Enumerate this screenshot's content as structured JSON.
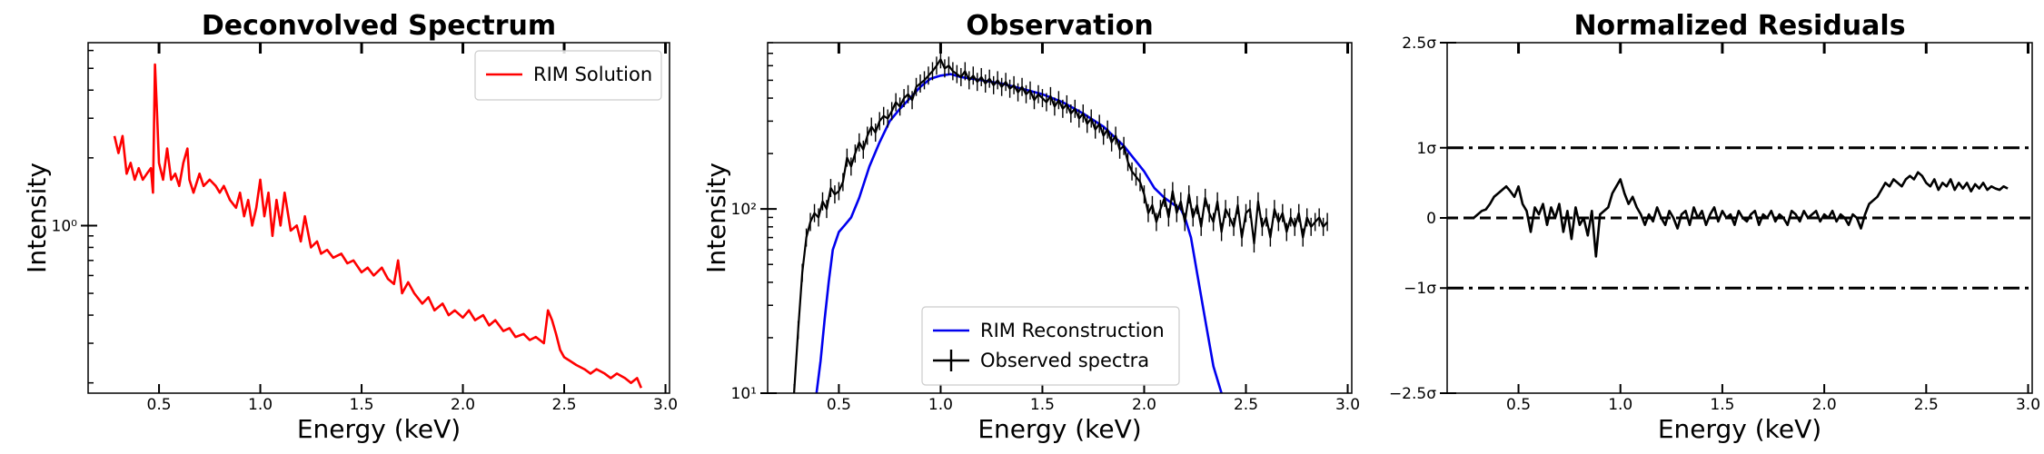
{
  "chart_data": [
    {
      "type": "line",
      "title": "Deconvolved Spectrum",
      "xlabel": "Energy (keV)",
      "ylabel": "Intensity",
      "xscale": "linear",
      "yscale": "log",
      "xlim": [
        0.15,
        3.02
      ],
      "ylim": [
        0.18,
        6.5
      ],
      "xticks": [
        {
          "v": 0.5,
          "label": "0.5"
        },
        {
          "v": 1.0,
          "label": "1.0"
        },
        {
          "v": 1.5,
          "label": "1.5"
        },
        {
          "v": 2.0,
          "label": "2.0"
        },
        {
          "v": 2.5,
          "label": "2.5"
        },
        {
          "v": 3.0,
          "label": "3.0"
        }
      ],
      "yticks": [
        {
          "v": 1.0,
          "label": "10⁰"
        }
      ],
      "legend": {
        "position": "upper-right",
        "entries": [
          {
            "label": "RIM Solution",
            "color": "#ff0000",
            "style": "line"
          }
        ]
      },
      "series": [
        {
          "name": "RIM Solution",
          "color": "#ff0000",
          "x": [
            0.28,
            0.3,
            0.32,
            0.34,
            0.36,
            0.38,
            0.4,
            0.42,
            0.44,
            0.46,
            0.47,
            0.48,
            0.49,
            0.5,
            0.52,
            0.54,
            0.56,
            0.58,
            0.6,
            0.62,
            0.64,
            0.65,
            0.67,
            0.7,
            0.72,
            0.75,
            0.78,
            0.8,
            0.82,
            0.85,
            0.88,
            0.9,
            0.92,
            0.94,
            0.96,
            0.98,
            1.0,
            1.02,
            1.04,
            1.06,
            1.08,
            1.1,
            1.12,
            1.15,
            1.18,
            1.2,
            1.22,
            1.25,
            1.28,
            1.3,
            1.33,
            1.36,
            1.4,
            1.43,
            1.46,
            1.5,
            1.53,
            1.56,
            1.6,
            1.63,
            1.66,
            1.68,
            1.7,
            1.73,
            1.76,
            1.8,
            1.83,
            1.86,
            1.9,
            1.93,
            1.96,
            2.0,
            2.03,
            2.06,
            2.1,
            2.13,
            2.16,
            2.2,
            2.23,
            2.26,
            2.3,
            2.33,
            2.36,
            2.4,
            2.42,
            2.44,
            2.46,
            2.48,
            2.5,
            2.53,
            2.56,
            2.6,
            2.63,
            2.66,
            2.7,
            2.73,
            2.76,
            2.8,
            2.83,
            2.86,
            2.88
          ],
          "y": [
            2.5,
            2.1,
            2.5,
            1.7,
            1.9,
            1.6,
            1.8,
            1.6,
            1.7,
            1.8,
            1.4,
            5.2,
            3.2,
            1.9,
            1.6,
            2.2,
            1.6,
            1.7,
            1.5,
            1.9,
            2.2,
            1.6,
            1.4,
            1.7,
            1.5,
            1.6,
            1.5,
            1.4,
            1.5,
            1.3,
            1.2,
            1.4,
            1.1,
            1.3,
            1.0,
            1.2,
            1.6,
            1.1,
            1.4,
            0.9,
            1.3,
            1.0,
            1.4,
            0.95,
            1.0,
            0.85,
            1.1,
            0.8,
            0.85,
            0.75,
            0.78,
            0.72,
            0.75,
            0.68,
            0.7,
            0.62,
            0.65,
            0.6,
            0.65,
            0.58,
            0.55,
            0.7,
            0.5,
            0.56,
            0.5,
            0.45,
            0.48,
            0.42,
            0.45,
            0.4,
            0.42,
            0.39,
            0.42,
            0.38,
            0.4,
            0.36,
            0.38,
            0.34,
            0.35,
            0.32,
            0.33,
            0.31,
            0.32,
            0.3,
            0.42,
            0.38,
            0.33,
            0.28,
            0.26,
            0.25,
            0.24,
            0.23,
            0.22,
            0.23,
            0.22,
            0.21,
            0.22,
            0.21,
            0.2,
            0.21,
            0.19
          ]
        }
      ]
    },
    {
      "type": "line",
      "title": "Observation",
      "xlabel": "Energy (keV)",
      "ylabel": "Intensity",
      "xscale": "linear",
      "yscale": "log",
      "xlim": [
        0.15,
        3.02
      ],
      "ylim": [
        10,
        800
      ],
      "xticks": [
        {
          "v": 0.5,
          "label": "0.5"
        },
        {
          "v": 1.0,
          "label": "1.0"
        },
        {
          "v": 1.5,
          "label": "1.5"
        },
        {
          "v": 2.0,
          "label": "2.0"
        },
        {
          "v": 2.5,
          "label": "2.5"
        },
        {
          "v": 3.0,
          "label": "3.0"
        }
      ],
      "yticks": [
        {
          "v": 10,
          "label": "10¹"
        },
        {
          "v": 100,
          "label": "10²"
        }
      ],
      "legend": {
        "position": "lower-center",
        "entries": [
          {
            "label": "RIM Reconstruction",
            "color": "#0000ee",
            "style": "line"
          },
          {
            "label": "Observed spectra",
            "color": "#000000",
            "style": "errorbar"
          }
        ]
      },
      "series": [
        {
          "name": "RIM Reconstruction",
          "color": "#0000ee",
          "x": [
            0.39,
            0.41,
            0.43,
            0.45,
            0.47,
            0.5,
            0.53,
            0.56,
            0.6,
            0.65,
            0.7,
            0.75,
            0.8,
            0.85,
            0.9,
            0.95,
            1.0,
            1.05,
            1.1,
            1.2,
            1.3,
            1.4,
            1.5,
            1.6,
            1.7,
            1.8,
            1.9,
            2.0,
            2.05,
            2.1,
            2.15,
            2.18,
            2.2,
            2.23,
            2.26,
            2.3,
            2.34,
            2.38
          ],
          "y": [
            10,
            15,
            25,
            40,
            60,
            75,
            82,
            90,
            115,
            170,
            230,
            300,
            350,
            400,
            460,
            510,
            530,
            540,
            520,
            500,
            480,
            450,
            420,
            380,
            330,
            280,
            220,
            160,
            130,
            115,
            105,
            100,
            90,
            70,
            45,
            25,
            14,
            10
          ],
          "errorbars": false
        },
        {
          "name": "Observed spectra",
          "color": "#000000",
          "x": [
            0.28,
            0.3,
            0.32,
            0.34,
            0.36,
            0.38,
            0.4,
            0.42,
            0.44,
            0.46,
            0.48,
            0.5,
            0.52,
            0.54,
            0.56,
            0.58,
            0.6,
            0.62,
            0.64,
            0.66,
            0.68,
            0.7,
            0.72,
            0.74,
            0.76,
            0.78,
            0.8,
            0.82,
            0.84,
            0.86,
            0.88,
            0.9,
            0.92,
            0.94,
            0.96,
            0.98,
            1.0,
            1.02,
            1.04,
            1.06,
            1.08,
            1.1,
            1.12,
            1.14,
            1.16,
            1.18,
            1.2,
            1.22,
            1.24,
            1.26,
            1.28,
            1.3,
            1.32,
            1.34,
            1.36,
            1.38,
            1.4,
            1.42,
            1.44,
            1.46,
            1.48,
            1.5,
            1.52,
            1.54,
            1.56,
            1.58,
            1.6,
            1.62,
            1.64,
            1.66,
            1.68,
            1.7,
            1.72,
            1.74,
            1.76,
            1.78,
            1.8,
            1.82,
            1.84,
            1.86,
            1.88,
            1.9,
            1.92,
            1.94,
            1.96,
            1.98,
            2.0,
            2.02,
            2.04,
            2.06,
            2.08,
            2.1,
            2.12,
            2.14,
            2.16,
            2.18,
            2.2,
            2.22,
            2.24,
            2.26,
            2.28,
            2.3,
            2.32,
            2.34,
            2.36,
            2.38,
            2.4,
            2.42,
            2.44,
            2.46,
            2.48,
            2.5,
            2.52,
            2.54,
            2.56,
            2.58,
            2.6,
            2.62,
            2.64,
            2.66,
            2.68,
            2.7,
            2.72,
            2.74,
            2.76,
            2.78,
            2.8,
            2.82,
            2.84,
            2.86,
            2.88,
            2.9
          ],
          "y": [
            10,
            22,
            45,
            70,
            85,
            95,
            90,
            110,
            100,
            130,
            120,
            125,
            140,
            190,
            170,
            200,
            230,
            210,
            250,
            280,
            260,
            300,
            320,
            310,
            340,
            380,
            360,
            400,
            420,
            390,
            460,
            480,
            500,
            530,
            560,
            600,
            650,
            580,
            600,
            560,
            540,
            520,
            560,
            500,
            530,
            490,
            520,
            480,
            510,
            470,
            500,
            460,
            490,
            450,
            470,
            430,
            460,
            420,
            440,
            390,
            420,
            400,
            380,
            410,
            360,
            390,
            350,
            370,
            330,
            350,
            310,
            330,
            290,
            310,
            270,
            290,
            250,
            270,
            230,
            250,
            210,
            220,
            180,
            160,
            150,
            140,
            120,
            95,
            105,
            85,
            100,
            115,
            90,
            125,
            95,
            110,
            85,
            120,
            90,
            105,
            80,
            115,
            95,
            85,
            110,
            75,
            100,
            90,
            80,
            105,
            70,
            95,
            100,
            65,
            110,
            80,
            90,
            70,
            100,
            85,
            95,
            75,
            90,
            80,
            95,
            70,
            90,
            80,
            85,
            90,
            80,
            85
          ],
          "errorbars": true
        }
      ]
    },
    {
      "type": "line",
      "title": "Normalized Residuals",
      "xlabel": "Energy (keV)",
      "ylabel": "",
      "xscale": "linear",
      "yscale": "linear",
      "xlim": [
        0.15,
        3.02
      ],
      "ylim": [
        -2.5,
        2.5
      ],
      "xticks": [
        {
          "v": 0.5,
          "label": "0.5"
        },
        {
          "v": 1.0,
          "label": "1.0"
        },
        {
          "v": 1.5,
          "label": "1.5"
        },
        {
          "v": 2.0,
          "label": "2.0"
        },
        {
          "v": 2.5,
          "label": "2.5"
        },
        {
          "v": 3.0,
          "label": "3.0"
        }
      ],
      "yticks": [
        {
          "v": 2.5,
          "label": "2.5σ"
        },
        {
          "v": 1.0,
          "label": "1σ"
        },
        {
          "v": 0,
          "label": "0"
        },
        {
          "v": -1.0,
          "label": "−1σ"
        },
        {
          "v": -2.5,
          "label": "−2.5σ"
        }
      ],
      "reference_lines": [
        {
          "y": 1.0,
          "style": "dashdot",
          "color": "#000000"
        },
        {
          "y": 0.0,
          "style": "dashed",
          "color": "#000000"
        },
        {
          "y": -1.0,
          "style": "dashdot",
          "color": "#000000"
        }
      ],
      "series": [
        {
          "name": "residuals",
          "color": "#000000",
          "x": [
            0.28,
            0.3,
            0.32,
            0.34,
            0.36,
            0.38,
            0.4,
            0.42,
            0.44,
            0.46,
            0.48,
            0.5,
            0.52,
            0.54,
            0.56,
            0.58,
            0.6,
            0.62,
            0.64,
            0.66,
            0.68,
            0.7,
            0.72,
            0.74,
            0.76,
            0.78,
            0.8,
            0.82,
            0.84,
            0.86,
            0.88,
            0.9,
            0.92,
            0.94,
            0.96,
            0.98,
            1.0,
            1.02,
            1.04,
            1.06,
            1.08,
            1.1,
            1.12,
            1.14,
            1.16,
            1.18,
            1.2,
            1.22,
            1.24,
            1.26,
            1.28,
            1.3,
            1.32,
            1.34,
            1.36,
            1.38,
            1.4,
            1.42,
            1.44,
            1.46,
            1.48,
            1.5,
            1.52,
            1.54,
            1.56,
            1.58,
            1.6,
            1.62,
            1.64,
            1.66,
            1.68,
            1.7,
            1.72,
            1.74,
            1.76,
            1.78,
            1.8,
            1.82,
            1.84,
            1.86,
            1.88,
            1.9,
            1.92,
            1.94,
            1.96,
            1.98,
            2.0,
            2.02,
            2.04,
            2.06,
            2.08,
            2.1,
            2.12,
            2.14,
            2.16,
            2.18,
            2.2,
            2.22,
            2.24,
            2.26,
            2.28,
            2.3,
            2.32,
            2.34,
            2.36,
            2.38,
            2.4,
            2.42,
            2.44,
            2.46,
            2.48,
            2.5,
            2.52,
            2.54,
            2.56,
            2.58,
            2.6,
            2.62,
            2.64,
            2.66,
            2.68,
            2.7,
            2.72,
            2.74,
            2.76,
            2.78,
            2.8,
            2.82,
            2.84,
            2.86,
            2.88,
            2.9
          ],
          "y": [
            0.0,
            0.05,
            0.1,
            0.12,
            0.2,
            0.3,
            0.35,
            0.4,
            0.45,
            0.38,
            0.3,
            0.45,
            0.2,
            0.1,
            -0.2,
            0.15,
            0.05,
            0.2,
            -0.1,
            0.15,
            0.0,
            0.2,
            -0.2,
            0.1,
            -0.3,
            0.15,
            -0.1,
            0.0,
            -0.25,
            0.1,
            -0.55,
            0.05,
            0.1,
            0.15,
            0.35,
            0.45,
            0.55,
            0.35,
            0.2,
            0.3,
            0.15,
            0.05,
            -0.1,
            0.05,
            -0.05,
            0.15,
            0.0,
            -0.1,
            0.1,
            0.0,
            -0.15,
            0.05,
            0.1,
            -0.1,
            0.15,
            0.0,
            0.1,
            -0.1,
            0.05,
            0.15,
            -0.05,
            0.1,
            0.0,
            0.05,
            -0.1,
            0.1,
            0.0,
            -0.05,
            0.05,
            0.1,
            -0.1,
            0.05,
            0.0,
            0.1,
            -0.05,
            0.05,
            0.0,
            -0.1,
            0.1,
            0.05,
            -0.05,
            0.1,
            0.0,
            0.05,
            0.1,
            -0.05,
            0.05,
            0.0,
            0.1,
            -0.05,
            0.05,
            0.0,
            -0.1,
            0.05,
            0.0,
            -0.15,
            0.05,
            0.2,
            0.25,
            0.3,
            0.4,
            0.5,
            0.45,
            0.55,
            0.5,
            0.45,
            0.55,
            0.6,
            0.55,
            0.65,
            0.6,
            0.5,
            0.45,
            0.55,
            0.4,
            0.5,
            0.45,
            0.55,
            0.4,
            0.5,
            0.42,
            0.5,
            0.38,
            0.48,
            0.42,
            0.5,
            0.4,
            0.45,
            0.42,
            0.4,
            0.45,
            0.42
          ]
        }
      ]
    }
  ]
}
